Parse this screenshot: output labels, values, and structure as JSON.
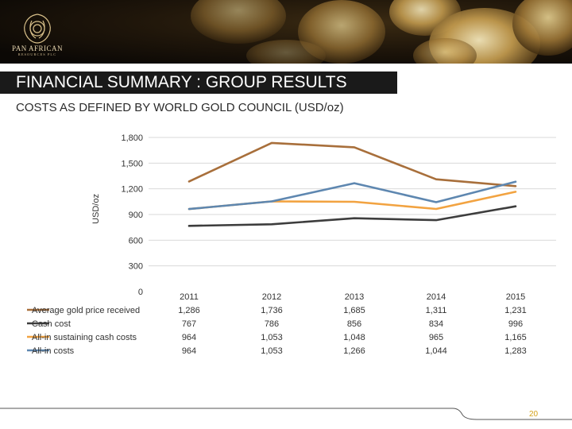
{
  "brand": {
    "name": "PAN AFRICAN",
    "sub": "RESOURCES PLC"
  },
  "slide": {
    "title": "FINANCIAL SUMMARY : GROUP RESULTS",
    "subtitle": "COSTS AS DEFINED BY WORLD GOLD COUNCIL (USD/oz)",
    "page_number": "20"
  },
  "colors": {
    "title_bar": "#1a1a1a",
    "page_number": "#d4a017"
  },
  "chart_data": {
    "type": "line",
    "title": "",
    "xlabel": "",
    "ylabel": "USD/oz",
    "ylim": [
      0,
      1800
    ],
    "yticks": [
      0,
      300,
      600,
      900,
      1200,
      1500,
      1800
    ],
    "ytick_labels": [
      "0",
      "300",
      "600",
      "900",
      "1,200",
      "1,500",
      "1,800"
    ],
    "grid": true,
    "legend": "table-left",
    "categories": [
      "2011",
      "2012",
      "2013",
      "2014",
      "2015"
    ],
    "series": [
      {
        "name": "Average gold price received",
        "color": "#a86f3b",
        "values": [
          1286,
          1736,
          1685,
          1311,
          1231
        ],
        "labels": [
          "1,286",
          "1,736",
          "1,685",
          "1,311",
          "1,231"
        ]
      },
      {
        "name": "Cash cost",
        "color": "#3d3d3d",
        "values": [
          767,
          786,
          856,
          834,
          996
        ],
        "labels": [
          "767",
          "786",
          "856",
          "834",
          "996"
        ]
      },
      {
        "name": "All-in sustaining cash costs",
        "color": "#f2a341",
        "values": [
          964,
          1053,
          1048,
          965,
          1165
        ],
        "labels": [
          "964",
          "1,053",
          "1,048",
          "965",
          "1,165"
        ]
      },
      {
        "name": "All-in costs",
        "color": "#5e87b0",
        "values": [
          964,
          1053,
          1266,
          1044,
          1283
        ],
        "labels": [
          "964",
          "1,053",
          "1,266",
          "1,044",
          "1,283"
        ]
      }
    ]
  }
}
